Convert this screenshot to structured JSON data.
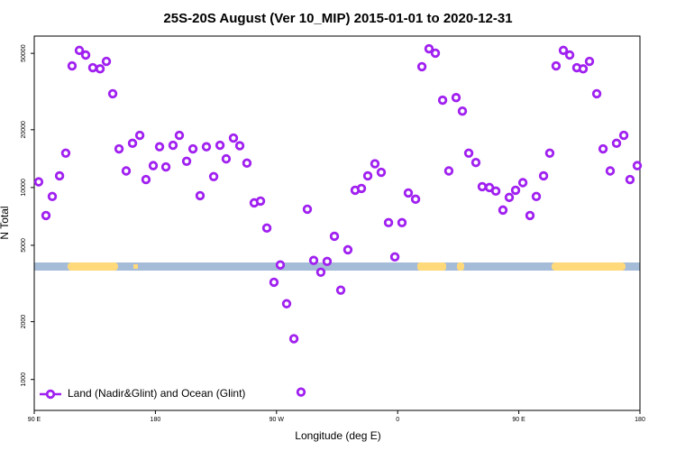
{
  "chart_data": {
    "type": "scatter",
    "title": "25S-20S August (Ver 10_MIP)   2015-01-01 to 2020-12-31",
    "xlabel": "Longitude (deg E)",
    "ylabel": "N Total",
    "log_y": true,
    "legend": "lower left",
    "xlim": [
      90,
      540
    ],
    "ylim": [
      690,
      61500
    ],
    "xticks": [
      {
        "value": 90,
        "label": "90 E"
      },
      {
        "value": 180,
        "label": "180"
      },
      {
        "value": 270,
        "label": "90 W"
      },
      {
        "value": 360,
        "label": "0"
      },
      {
        "value": 450,
        "label": "90 E"
      },
      {
        "value": 540,
        "label": "180"
      }
    ],
    "yticks": [
      1000,
      2000,
      5000,
      10000,
      20000,
      50000
    ],
    "x": [
      93.3,
      98.7,
      103.4,
      108.8,
      113.4,
      118.1,
      123.5,
      128.2,
      133.5,
      138.9,
      143.6,
      148.3,
      153.0,
      158.3,
      163.0,
      168.4,
      173.0,
      178.4,
      183.1,
      187.8,
      193.1,
      197.8,
      203.2,
      207.9,
      213.2,
      217.9,
      223.3,
      228.0,
      232.6,
      238.0,
      242.7,
      248.0,
      253.4,
      258.1,
      262.8,
      268.1,
      272.8,
      277.5,
      282.9,
      288.2,
      292.9,
      297.6,
      302.9,
      307.6,
      313.0,
      317.7,
      323.0,
      328.4,
      333.1,
      337.8,
      343.1,
      347.8,
      353.2,
      357.9,
      363.2,
      367.9,
      373.3,
      378.0,
      383.3,
      388.0,
      393.4,
      398.0,
      403.4,
      408.1,
      412.8,
      418.1,
      422.8,
      428.2,
      432.9,
      438.2,
      442.9,
      447.6,
      453.0,
      458.3,
      463.0,
      468.4,
      473.0,
      477.7,
      483.1,
      487.8,
      493.1,
      497.8,
      502.5,
      507.9,
      512.6,
      517.9,
      522.6,
      528.0,
      532.6,
      538.0
    ],
    "series": [
      {
        "name": "Land (Nadir&Glint) and Ocean (Glint)",
        "color": "#a020f0",
        "values": [
          10700,
          7150,
          8980,
          11500,
          15100,
          43000,
          51800,
          49000,
          42100,
          41500,
          45400,
          30800,
          15900,
          12200,
          17000,
          18700,
          11000,
          13000,
          16300,
          12800,
          16600,
          18700,
          13700,
          15900,
          9070,
          16300,
          11400,
          16600,
          14100,
          18100,
          16500,
          13400,
          8320,
          8500,
          6150,
          3210,
          3950,
          2480,
          1630,
          860,
          7710,
          4170,
          3620,
          4120,
          5570,
          2920,
          4740,
          9680,
          9890,
          11500,
          13300,
          12000,
          6560,
          4350,
          6560,
          9370,
          8690,
          42600,
          52800,
          50100,
          28500,
          12200,
          29400,
          25000,
          15100,
          13500,
          10100,
          10000,
          9580,
          7630,
          8880,
          9680,
          10600,
          7150,
          8980,
          11500,
          15100,
          43000,
          51800,
          49000,
          42100,
          41500,
          45400,
          30800,
          15900,
          12200,
          17000,
          18700,
          11000,
          13000
        ]
      }
    ]
  }
}
